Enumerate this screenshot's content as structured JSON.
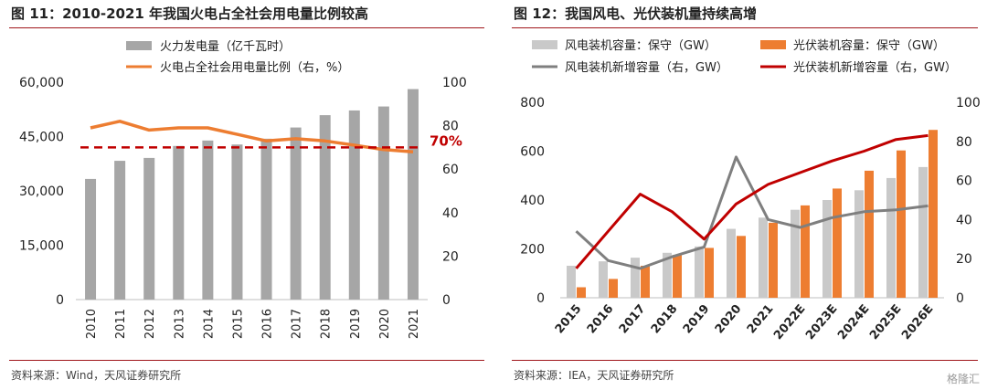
{
  "chart_data": [
    {
      "type": "bar",
      "title": "图 11：2010-2021 年我国火电占全社会用电量比例较高",
      "source": "资料来源：Wind，天风证券研究所",
      "categories": [
        "2010",
        "2011",
        "2012",
        "2013",
        "2014",
        "2015",
        "2016",
        "2017",
        "2018",
        "2019",
        "2020",
        "2021"
      ],
      "series": [
        {
          "name": "火力发电量（亿千瓦时）",
          "type": "bar",
          "axis": "left",
          "values": [
            33300,
            38300,
            39100,
            42400,
            43900,
            42800,
            44400,
            47500,
            50900,
            52200,
            53300,
            58100
          ]
        },
        {
          "name": "火电占全社会用电量比例（右，%）",
          "type": "line",
          "axis": "right",
          "values": [
            79,
            82,
            78,
            79,
            79,
            76,
            73,
            74,
            73,
            71,
            69,
            68
          ]
        }
      ],
      "ylim_left": [
        0,
        60000
      ],
      "yticks_left": [
        "0",
        "15,000",
        "30,000",
        "45,000",
        "60,000"
      ],
      "ylim_right": [
        0,
        100
      ],
      "yticks_right": [
        "0",
        "20",
        "40",
        "60",
        "80",
        "100"
      ],
      "reference_line": {
        "value": 70,
        "axis": "right",
        "label": "70%"
      },
      "colors": {
        "bar": "#a6a6a6",
        "line": "#ed7d31",
        "ref": "#c00000"
      },
      "legend": "top"
    },
    {
      "type": "bar",
      "title": "图 12：我国风电、光伏装机量持续高增",
      "source": "资料来源：IEA，天风证券研究所",
      "categories": [
        "2015",
        "2016",
        "2017",
        "2018",
        "2019",
        "2020",
        "2021",
        "2022E",
        "2023E",
        "2024E",
        "2025E",
        "2026E"
      ],
      "series": [
        {
          "name": "风电装机容量：保守（GW）",
          "type": "bar",
          "axis": "left",
          "values": [
            131,
            149,
            164,
            184,
            210,
            282,
            328,
            360,
            400,
            440,
            490,
            535
          ]
        },
        {
          "name": "光伏装机容量：保守（GW）",
          "type": "bar",
          "axis": "left",
          "values": [
            43,
            77,
            131,
            175,
            204,
            253,
            307,
            378,
            447,
            520,
            603,
            687
          ]
        },
        {
          "name": "风电装机新增容量（右，GW）",
          "type": "line",
          "axis": "right",
          "values": [
            34,
            19,
            15,
            21,
            26,
            72,
            40,
            36,
            41,
            44,
            45,
            47
          ]
        },
        {
          "name": "光伏装机新增容量（右，GW）",
          "type": "line",
          "axis": "right",
          "values": [
            15,
            34,
            53,
            44,
            30,
            48,
            58,
            64,
            70,
            75,
            81,
            83
          ]
        }
      ],
      "ylim_left": [
        0,
        800
      ],
      "yticks_left": [
        "0",
        "200",
        "400",
        "600",
        "800"
      ],
      "ylim_right": [
        0,
        100
      ],
      "yticks_right": [
        "0",
        "20",
        "40",
        "60",
        "80",
        "100"
      ],
      "colors": {
        "wind_bar": "#c9c9c9",
        "solar_bar": "#ed7d31",
        "wind_line": "#7f7f7f",
        "solar_line": "#c00000"
      },
      "legend": "top"
    }
  ],
  "watermark": "格隆汇"
}
